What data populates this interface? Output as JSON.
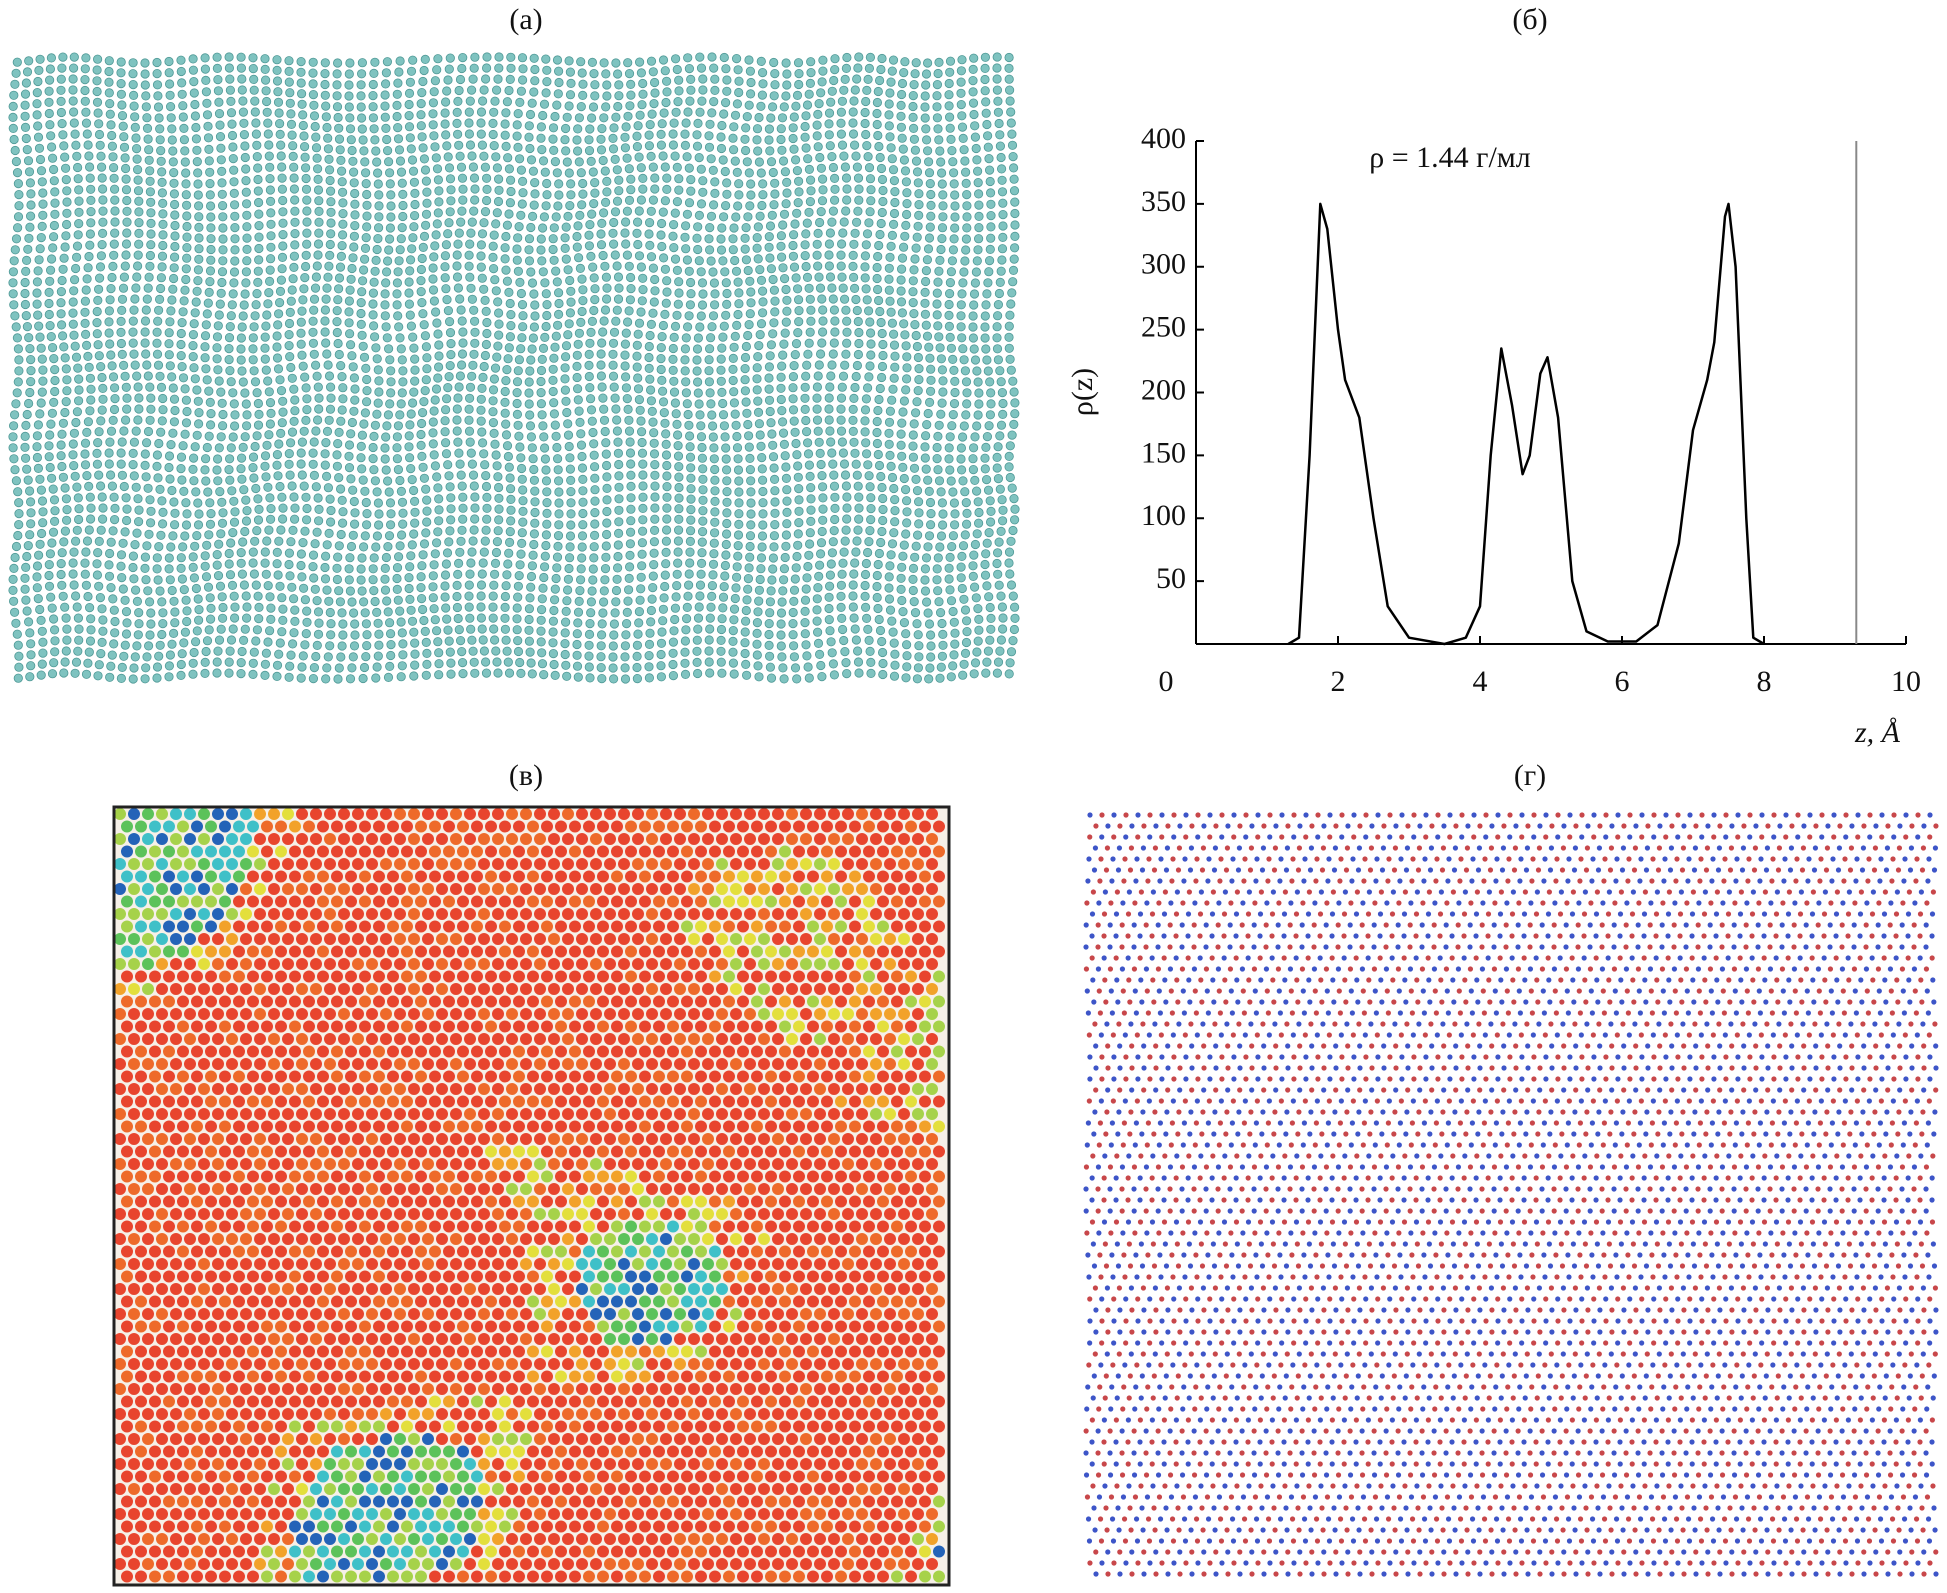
{
  "panel_labels": [
    "(а)",
    "(б)",
    "(в)",
    "(г)"
  ],
  "chart_data": {
    "type": "line",
    "annotation": "ρ = 1.44 г/мл",
    "y_label": "ρ(z)",
    "x_label": "z, Å",
    "xlim": [
      0,
      10
    ],
    "xticks": [
      0,
      2,
      4,
      6,
      8,
      10
    ],
    "ylim": [
      0,
      400
    ],
    "yticks": [
      50,
      100,
      150,
      200,
      250,
      300,
      350,
      400
    ],
    "vline": 9.3,
    "color": "#000000",
    "x": [
      1.3,
      1.45,
      1.6,
      1.75,
      1.85,
      2.0,
      2.1,
      2.3,
      2.5,
      2.7,
      3.0,
      3.5,
      3.8,
      4.0,
      4.15,
      4.3,
      4.45,
      4.6,
      4.7,
      4.85,
      4.95,
      5.1,
      5.3,
      5.5,
      5.8,
      6.2,
      6.5,
      6.8,
      7.0,
      7.2,
      7.3,
      7.45,
      7.5,
      7.6,
      7.75,
      7.85,
      8.0
    ],
    "values": [
      0,
      5,
      150,
      350,
      330,
      250,
      210,
      180,
      100,
      30,
      5,
      0,
      5,
      30,
      150,
      235,
      190,
      135,
      150,
      215,
      228,
      180,
      50,
      10,
      2,
      2,
      15,
      80,
      170,
      210,
      240,
      340,
      350,
      300,
      100,
      5,
      0
    ]
  }
}
